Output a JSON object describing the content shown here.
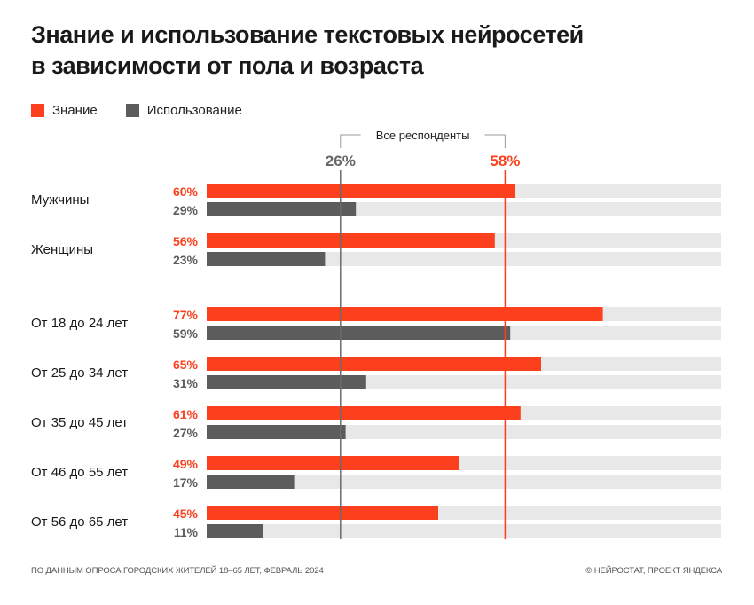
{
  "colors": {
    "knowledge": "#fc3f1d",
    "usage": "#5c5c5c",
    "track": "#e8e8e8",
    "ref_usage_line": "#6b6b6b"
  },
  "title_line1": "Знание и использование текстовых нейросетей",
  "title_line2": "в зависимости от пола и возраста",
  "footer": {
    "source": "ПО ДАННЫМ ОПРОСА ГОРОДСКИХ ЖИТЕЛЕЙ 18–65 ЛЕТ, ФЕВРАЛЬ 2024",
    "credit": "© НЕЙРОСТАТ, ПРОЕКТ ЯНДЕКСА"
  },
  "chart_data": {
    "type": "bar",
    "orientation": "horizontal",
    "title": "Знание и использование текстовых нейросетей в зависимости от пола и возраста",
    "xlim": [
      0,
      100
    ],
    "unit": "%",
    "legend": {
      "placement": "top-left",
      "entries": [
        "Знание",
        "Использование"
      ]
    },
    "categories": [
      "Мужчины",
      "Женщины",
      "От 18 до 24 лет",
      "От 25 до 34 лет",
      "От 35 до 45 лет",
      "От 46 до 55 лет",
      "От 56 до 65 лет"
    ],
    "groups": [
      {
        "name": "gender",
        "categories": [
          "Мужчины",
          "Женщины"
        ]
      },
      {
        "name": "age",
        "categories": [
          "От 18 до 24 лет",
          "От 25 до 34 лет",
          "От 35 до 45 лет",
          "От 46 до 55 лет",
          "От 56 до 65 лет"
        ]
      }
    ],
    "series": [
      {
        "name": "Знание",
        "values": [
          60,
          56,
          77,
          65,
          61,
          49,
          45
        ]
      },
      {
        "name": "Использование",
        "values": [
          29,
          23,
          59,
          31,
          27,
          17,
          11
        ]
      }
    ],
    "reference": {
      "label": "Все респонденты",
      "lines": [
        {
          "series": "Использование",
          "value": 26,
          "label": "26%"
        },
        {
          "series": "Знание",
          "value": 58,
          "label": "58%"
        }
      ]
    }
  }
}
